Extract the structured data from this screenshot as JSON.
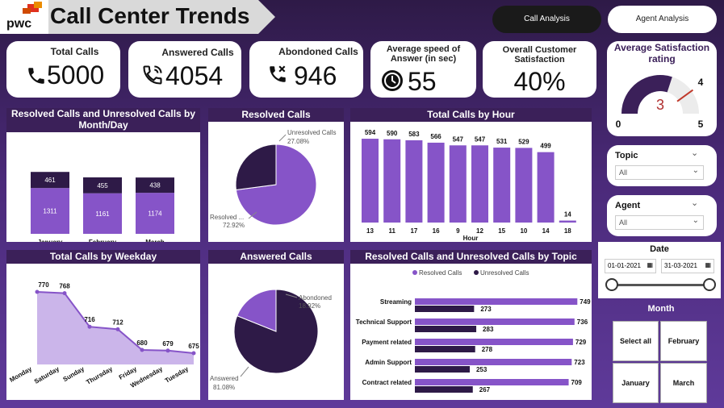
{
  "header": {
    "title": "Call Center Trends",
    "logo_text": "pwc"
  },
  "nav": {
    "call_analysis": "Call Analysis",
    "agent_analysis": "Agent Analysis"
  },
  "kpis": {
    "total_calls": {
      "label": "Total Calls",
      "value": "5000"
    },
    "answered_calls": {
      "label": "Answered Calls",
      "value": "4054"
    },
    "abandoned_calls": {
      "label": "Abondoned Calls",
      "value": "946"
    },
    "avg_speed": {
      "label": "Average speed of Answer (in sec)",
      "value": "55"
    },
    "satisfaction": {
      "label": "Overall Customer Satisfaction",
      "value": "40%"
    }
  },
  "gauge": {
    "title": "Average Satisfaction rating",
    "value": 3,
    "value_label": "3",
    "min": "0",
    "max": "5",
    "target": "4"
  },
  "slicers": {
    "topic": {
      "label": "Topic",
      "value": "All"
    },
    "agent": {
      "label": "Agent",
      "value": "All"
    },
    "date": {
      "label": "Date",
      "start": "01-01-2021",
      "end": "31-03-2021"
    },
    "month": {
      "label": "Month",
      "options": [
        "Select all",
        "February",
        "January",
        "March"
      ]
    }
  },
  "colors": {
    "resolved": "#8654c8",
    "unresolved": "#2e1a47",
    "accent": "#3b2059"
  },
  "chart_data": [
    {
      "type": "bar",
      "title": "Resolved Calls and Unresolved Calls by Month/Day",
      "stacked": true,
      "categories": [
        "January",
        "February",
        "March"
      ],
      "series": [
        {
          "name": "Resolved Calls",
          "values": [
            1311,
            1161,
            1174
          ]
        },
        {
          "name": "Unresolved Calls",
          "values": [
            461,
            455,
            438
          ]
        }
      ],
      "legend": "top"
    },
    {
      "type": "pie",
      "title": "Resolved Calls",
      "slices": [
        {
          "label": "Resolved ...",
          "pct_label": "72.92%",
          "value": 72.92
        },
        {
          "label": "Unresolved Calls",
          "pct_label": "27.08%",
          "value": 27.08
        }
      ]
    },
    {
      "type": "bar",
      "title": "Total Calls by Hour",
      "xlabel": "Hour",
      "categories": [
        "13",
        "11",
        "17",
        "16",
        "9",
        "12",
        "15",
        "10",
        "14",
        "18"
      ],
      "values": [
        594,
        590,
        583,
        566,
        547,
        547,
        531,
        529,
        499,
        14
      ]
    },
    {
      "type": "area",
      "title": "Total Calls by Weekday",
      "categories": [
        "Monday",
        "Saturday",
        "Sunday",
        "Thursday",
        "Friday",
        "Wednesday",
        "Tuesday"
      ],
      "values": [
        770,
        768,
        716,
        712,
        680,
        679,
        675
      ]
    },
    {
      "type": "pie",
      "title": "Answered Calls",
      "slices": [
        {
          "label": "Answered",
          "pct_label": "81.08%",
          "value": 81.08
        },
        {
          "label": "Abondoned",
          "pct_label": "18.92%",
          "value": 18.92
        }
      ]
    },
    {
      "type": "bar",
      "orientation": "horizontal",
      "title": "Resolved Calls and Unresolved Calls by Topic",
      "categories": [
        "Streaming",
        "Technical Support",
        "Payment related",
        "Admin Support",
        "Contract related"
      ],
      "series": [
        {
          "name": "Resolved Calls",
          "values": [
            749,
            736,
            729,
            723,
            709
          ]
        },
        {
          "name": "Unresolved Calls",
          "values": [
            273,
            283,
            278,
            253,
            267
          ]
        }
      ],
      "legend": "top"
    }
  ]
}
